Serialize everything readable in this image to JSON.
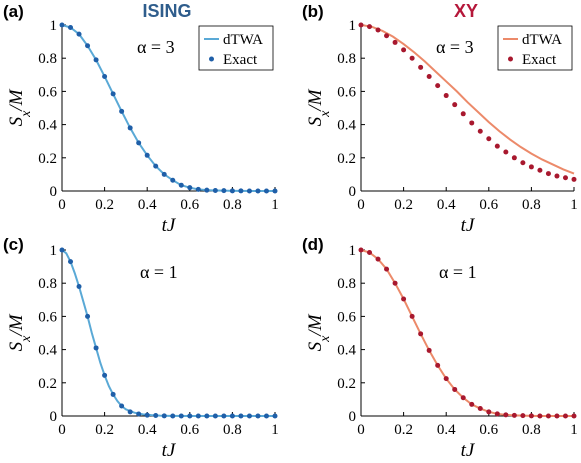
{
  "colors": {
    "ising_line": "#5aa9d6",
    "ising_point": "#1f5fa8",
    "xy_line": "#ec8a6a",
    "xy_point": "#a8182e",
    "ising_title": "#2f5d8c",
    "xy_title": "#b5173a"
  },
  "titles": {
    "ising": "ISING",
    "xy": "XY"
  },
  "chart_data": [
    {
      "type": "line",
      "panel_label": "(a)",
      "model": "ISING",
      "annotation": "α = 3",
      "xlabel": "tJ",
      "ylabel": "Sx/M",
      "xlim": [
        0,
        1
      ],
      "ylim": [
        0,
        1
      ],
      "xticks": [
        "0",
        "0.2",
        "0.4",
        "0.6",
        "0.8",
        "1"
      ],
      "yticks": [
        "0",
        "0.2",
        "0.4",
        "0.6",
        "0.8",
        "1"
      ],
      "legend": {
        "placement": "top-right",
        "entries": [
          "dTWA",
          "Exact"
        ]
      },
      "series": [
        {
          "name": "dTWA",
          "style": "line",
          "x": [
            0,
            0.04,
            0.08,
            0.12,
            0.16,
            0.2,
            0.24,
            0.28,
            0.32,
            0.36,
            0.4,
            0.44,
            0.48,
            0.52,
            0.56,
            0.6,
            0.64,
            0.68,
            0.72,
            0.76,
            0.8,
            0.84,
            0.88,
            0.92,
            0.96,
            1.0
          ],
          "y": [
            1.0,
            0.985,
            0.945,
            0.875,
            0.79,
            0.69,
            0.585,
            0.48,
            0.38,
            0.29,
            0.215,
            0.15,
            0.1,
            0.065,
            0.035,
            0.02,
            0.01,
            0.005,
            0.003,
            0.002,
            0.001,
            0.001,
            0.0,
            0.0,
            0.0,
            0.0
          ]
        },
        {
          "name": "Exact",
          "style": "points",
          "x": [
            0,
            0.04,
            0.08,
            0.12,
            0.16,
            0.2,
            0.24,
            0.28,
            0.32,
            0.36,
            0.4,
            0.44,
            0.48,
            0.52,
            0.56,
            0.6,
            0.64,
            0.68,
            0.72,
            0.76,
            0.8,
            0.84,
            0.88,
            0.92,
            0.96,
            1.0
          ],
          "y": [
            1.0,
            0.985,
            0.945,
            0.875,
            0.79,
            0.69,
            0.585,
            0.48,
            0.38,
            0.29,
            0.215,
            0.15,
            0.1,
            0.065,
            0.035,
            0.02,
            0.01,
            0.005,
            0.003,
            0.002,
            0.001,
            0.001,
            0.0,
            0.0,
            0.0,
            0.0
          ]
        }
      ]
    },
    {
      "type": "line",
      "panel_label": "(b)",
      "model": "XY",
      "annotation": "α = 3",
      "xlabel": "tJ",
      "ylabel": "Sx/M",
      "xlim": [
        0,
        1
      ],
      "ylim": [
        0,
        1
      ],
      "xticks": [
        "0",
        "0.2",
        "0.4",
        "0.6",
        "0.8",
        "1"
      ],
      "yticks": [
        "0",
        "0.2",
        "0.4",
        "0.6",
        "0.8",
        "1"
      ],
      "legend": {
        "placement": "top-right",
        "entries": [
          "dTWA",
          "Exact"
        ]
      },
      "series": [
        {
          "name": "dTWA",
          "style": "line",
          "x": [
            0,
            0.05,
            0.1,
            0.15,
            0.2,
            0.25,
            0.3,
            0.35,
            0.4,
            0.45,
            0.5,
            0.55,
            0.6,
            0.65,
            0.7,
            0.75,
            0.8,
            0.85,
            0.9,
            0.95,
            1.0
          ],
          "y": [
            1.0,
            0.99,
            0.965,
            0.93,
            0.885,
            0.835,
            0.78,
            0.72,
            0.66,
            0.6,
            0.535,
            0.475,
            0.415,
            0.36,
            0.31,
            0.265,
            0.225,
            0.19,
            0.16,
            0.13,
            0.105
          ]
        },
        {
          "name": "Exact",
          "style": "points",
          "x": [
            0,
            0.04,
            0.08,
            0.12,
            0.16,
            0.2,
            0.24,
            0.28,
            0.32,
            0.36,
            0.4,
            0.44,
            0.48,
            0.52,
            0.56,
            0.6,
            0.64,
            0.68,
            0.72,
            0.76,
            0.8,
            0.84,
            0.88,
            0.92,
            0.96,
            1.0
          ],
          "y": [
            1.0,
            0.99,
            0.97,
            0.935,
            0.895,
            0.85,
            0.8,
            0.745,
            0.69,
            0.635,
            0.575,
            0.52,
            0.465,
            0.41,
            0.36,
            0.315,
            0.27,
            0.235,
            0.2,
            0.17,
            0.145,
            0.125,
            0.105,
            0.09,
            0.08,
            0.07
          ]
        }
      ]
    },
    {
      "type": "line",
      "panel_label": "(c)",
      "model": "ISING",
      "annotation": "α = 1",
      "xlabel": "tJ",
      "ylabel": "Sx/M",
      "xlim": [
        0,
        1
      ],
      "ylim": [
        0,
        1
      ],
      "xticks": [
        "0",
        "0.2",
        "0.4",
        "0.6",
        "0.8",
        "1"
      ],
      "yticks": [
        "0",
        "0.2",
        "0.4",
        "0.6",
        "0.8",
        "1"
      ],
      "series": [
        {
          "name": "dTWA",
          "style": "line",
          "x": [
            0,
            0.02,
            0.04,
            0.06,
            0.08,
            0.1,
            0.12,
            0.14,
            0.16,
            0.18,
            0.2,
            0.22,
            0.24,
            0.26,
            0.28,
            0.3,
            0.34,
            0.38,
            0.42,
            0.46,
            0.5,
            0.6,
            0.7,
            0.8,
            0.9,
            1.0
          ],
          "y": [
            1.0,
            0.98,
            0.93,
            0.86,
            0.78,
            0.69,
            0.6,
            0.5,
            0.41,
            0.32,
            0.245,
            0.18,
            0.13,
            0.09,
            0.06,
            0.04,
            0.02,
            0.01,
            0.005,
            0.002,
            0.001,
            0.0,
            0.0,
            0.0,
            0.0,
            0.0
          ]
        },
        {
          "name": "Exact",
          "style": "points",
          "x": [
            0,
            0.04,
            0.08,
            0.12,
            0.16,
            0.2,
            0.24,
            0.28,
            0.32,
            0.36,
            0.4,
            0.44,
            0.48,
            0.52,
            0.56,
            0.6,
            0.64,
            0.68,
            0.72,
            0.76,
            0.8,
            0.84,
            0.88,
            0.92,
            0.96,
            1.0
          ],
          "y": [
            1.0,
            0.93,
            0.78,
            0.6,
            0.41,
            0.245,
            0.13,
            0.06,
            0.025,
            0.012,
            0.005,
            0.003,
            0.001,
            0.0,
            0.0,
            0.0,
            0.0,
            0.0,
            0.0,
            0.0,
            0.0,
            0.0,
            0.0,
            0.0,
            0.0,
            0.0
          ]
        }
      ]
    },
    {
      "type": "line",
      "panel_label": "(d)",
      "model": "XY",
      "annotation": "α = 1",
      "xlabel": "tJ",
      "ylabel": "Sx/M",
      "xlim": [
        0,
        1
      ],
      "ylim": [
        0,
        1
      ],
      "xticks": [
        "0",
        "0.2",
        "0.4",
        "0.6",
        "0.8",
        "1"
      ],
      "yticks": [
        "0",
        "0.2",
        "0.4",
        "0.6",
        "0.8",
        "1"
      ],
      "series": [
        {
          "name": "dTWA",
          "style": "line",
          "x": [
            0,
            0.04,
            0.08,
            0.12,
            0.16,
            0.2,
            0.24,
            0.28,
            0.32,
            0.36,
            0.4,
            0.44,
            0.48,
            0.52,
            0.56,
            0.6,
            0.64,
            0.68,
            0.72,
            0.76,
            0.8,
            0.84,
            0.88,
            0.92,
            0.96,
            1.0
          ],
          "y": [
            1.0,
            0.985,
            0.945,
            0.885,
            0.8,
            0.705,
            0.6,
            0.495,
            0.395,
            0.305,
            0.225,
            0.16,
            0.11,
            0.07,
            0.045,
            0.025,
            0.013,
            0.007,
            0.004,
            0.002,
            0.001,
            0.0,
            0.0,
            0.0,
            0.0,
            0.0
          ]
        },
        {
          "name": "Exact",
          "style": "points",
          "x": [
            0,
            0.04,
            0.08,
            0.12,
            0.16,
            0.2,
            0.24,
            0.28,
            0.32,
            0.36,
            0.4,
            0.44,
            0.48,
            0.52,
            0.56,
            0.6,
            0.64,
            0.68,
            0.72,
            0.76,
            0.8,
            0.84,
            0.88,
            0.92,
            0.96,
            1.0
          ],
          "y": [
            1.0,
            0.985,
            0.945,
            0.885,
            0.8,
            0.705,
            0.6,
            0.495,
            0.395,
            0.305,
            0.225,
            0.16,
            0.11,
            0.07,
            0.045,
            0.025,
            0.013,
            0.007,
            0.004,
            0.002,
            0.001,
            0.0,
            0.0,
            0.0,
            0.0,
            0.0
          ]
        }
      ]
    }
  ]
}
